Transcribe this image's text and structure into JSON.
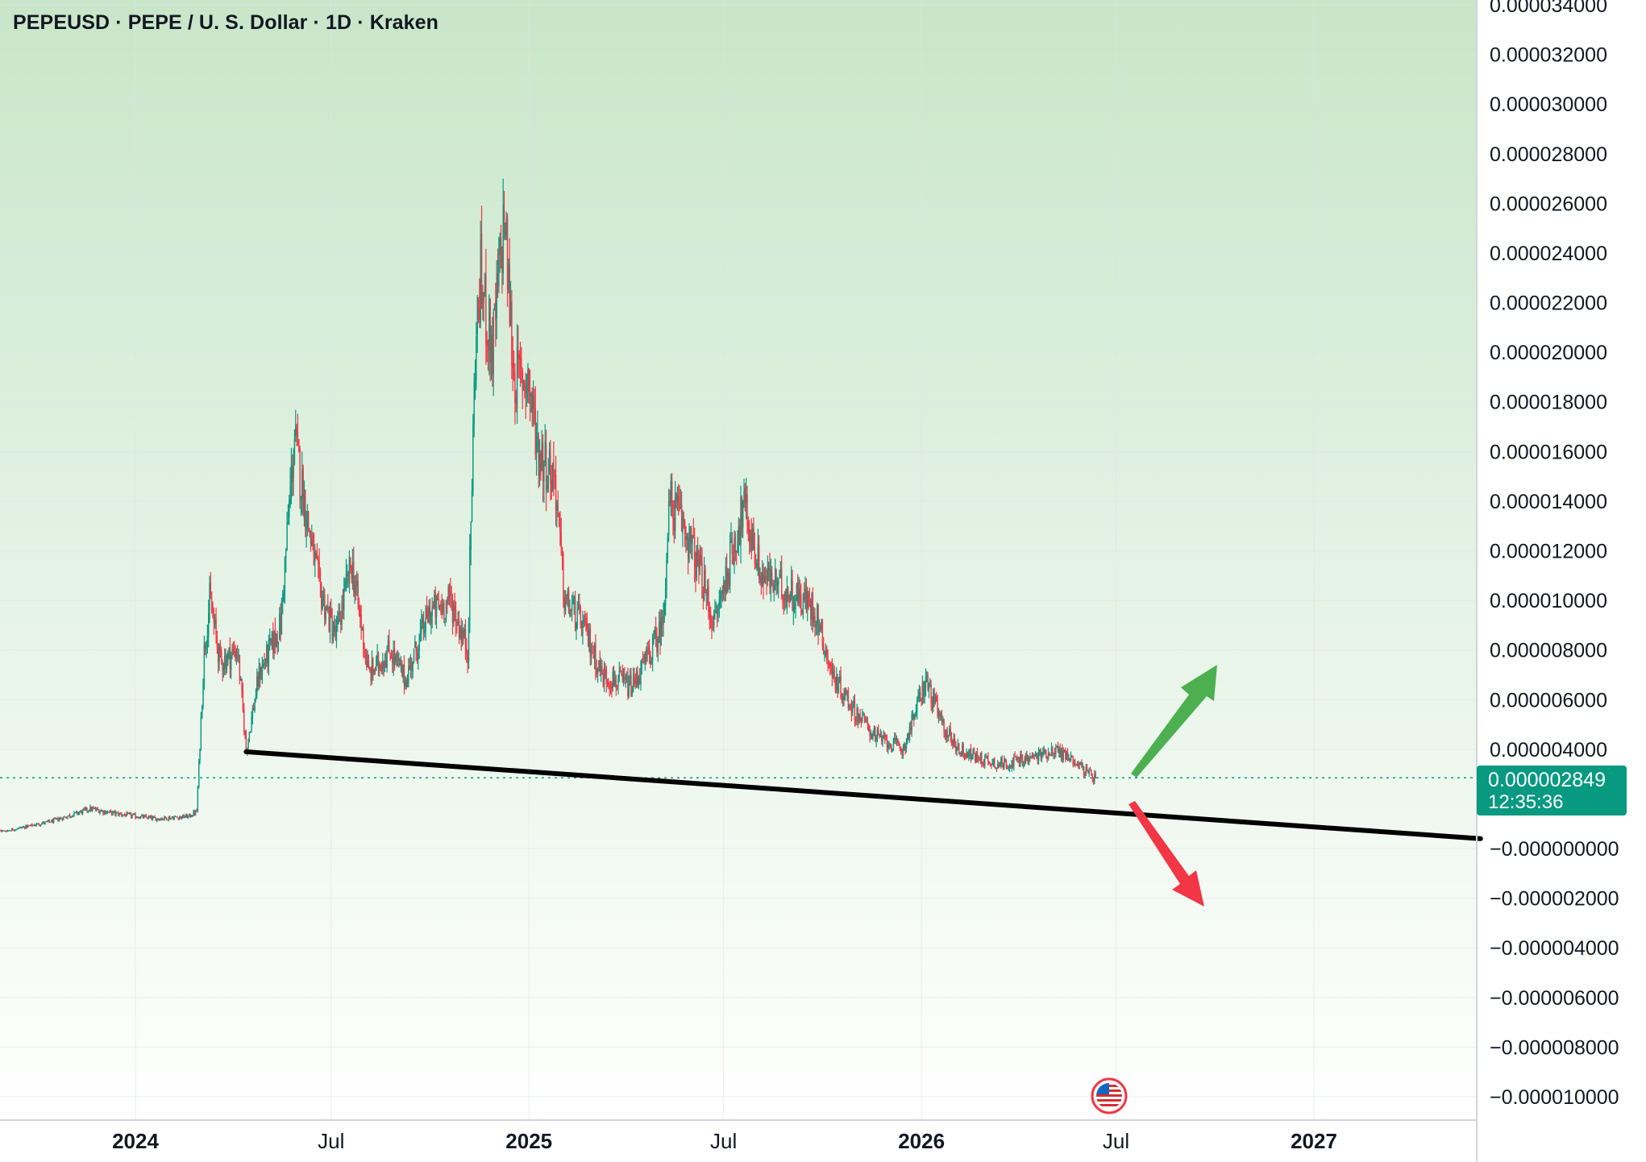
{
  "title": "PEPEUSD · PEPE / U. S. Dollar · 1D · Kraken",
  "colors": {
    "up": "#089981",
    "down": "#f23645",
    "bg_top": "#c8e6c9",
    "bg_bottom": "#ffffff",
    "trendline": "#000000",
    "arrow_up": "#4caf50",
    "arrow_down": "#f23645"
  },
  "icons": {
    "event": "us-flag-icon"
  },
  "price_tag": {
    "value": "0.000002849",
    "countdown": "12:35:36"
  },
  "chart_data": {
    "type": "candlestick",
    "title": "PEPEUSD · PEPE / U. S. Dollar · 1D · Kraken",
    "xlabel": "",
    "ylabel": "",
    "ylim": [
      -1e-05,
      3.4e-05
    ],
    "y_ticks": [
      "0.000034000",
      "0.000032000",
      "0.000030000",
      "0.000028000",
      "0.000026000",
      "0.000024000",
      "0.000022000",
      "0.000020000",
      "0.000018000",
      "0.000016000",
      "0.000014000",
      "0.000012000",
      "0.000010000",
      "0.000008000",
      "0.000006000",
      "0.000004000",
      "−0.000000000",
      "−0.000002000",
      "−0.000004000",
      "−0.000006000",
      "−0.000008000",
      "−0.000010000"
    ],
    "y_tick_values": [
      3.4e-05,
      3.2e-05,
      3e-05,
      2.8e-05,
      2.6e-05,
      2.4e-05,
      2.2e-05,
      2e-05,
      1.8e-05,
      1.6e-05,
      1.4e-05,
      1.2e-05,
      1e-05,
      8e-06,
      6e-06,
      4e-06,
      0,
      -2e-06,
      -4e-06,
      -6e-06,
      -8e-06,
      -1e-05
    ],
    "x_ticks": [
      {
        "label": "2024",
        "date": "2024-01-01",
        "bold": true
      },
      {
        "label": "Jul",
        "date": "2024-07-01",
        "bold": false
      },
      {
        "label": "2025",
        "date": "2025-01-01",
        "bold": true
      },
      {
        "label": "Jul",
        "date": "2025-07-01",
        "bold": false
      },
      {
        "label": "2026",
        "date": "2026-01-01",
        "bold": true
      },
      {
        "label": "Jul",
        "date": "2026-07-01",
        "bold": false
      },
      {
        "label": "2027",
        "date": "2027-01-01",
        "bold": true
      }
    ],
    "xlim": [
      "2023-07-29",
      "2027-06-05"
    ],
    "last_price": 2.849e-06,
    "price_path": [
      [
        "2023-07-29",
        9e-07
      ],
      [
        "2023-09-01",
        7e-07
      ],
      [
        "2023-10-15",
        1.1e-06
      ],
      [
        "2023-11-20",
        1.6e-06
      ],
      [
        "2023-12-15",
        1.4e-06
      ],
      [
        "2024-01-20",
        1.2e-06
      ],
      [
        "2024-02-20",
        1.3e-06
      ],
      [
        "2024-02-27",
        1.5e-06
      ],
      [
        "2024-03-05",
        8e-06
      ],
      [
        "2024-03-10",
        1e-05
      ],
      [
        "2024-03-20",
        7.5e-06
      ],
      [
        "2024-04-05",
        8e-06
      ],
      [
        "2024-04-13",
        4e-06
      ],
      [
        "2024-04-25",
        7e-06
      ],
      [
        "2024-05-15",
        9e-06
      ],
      [
        "2024-05-25",
        1.5e-05
      ],
      [
        "2024-05-28",
        1.65e-05
      ],
      [
        "2024-06-08",
        1.35e-05
      ],
      [
        "2024-06-20",
        1.05e-05
      ],
      [
        "2024-07-05",
        8.5e-06
      ],
      [
        "2024-07-20",
        1.15e-05
      ],
      [
        "2024-08-05",
        7e-06
      ],
      [
        "2024-08-25",
        8e-06
      ],
      [
        "2024-09-08",
        6.8e-06
      ],
      [
        "2024-09-30",
        9.5e-06
      ],
      [
        "2024-10-20",
        1e-05
      ],
      [
        "2024-11-05",
        8e-06
      ],
      [
        "2024-11-12",
        2e-05
      ],
      [
        "2024-11-17",
        2.3e-05
      ],
      [
        "2024-11-28",
        2e-05
      ],
      [
        "2024-12-09",
        2.55e-05
      ],
      [
        "2024-12-18",
        1.9e-05
      ],
      [
        "2024-12-31",
        1.9e-05
      ],
      [
        "2025-01-10",
        1.6e-05
      ],
      [
        "2025-01-25",
        1.5e-05
      ],
      [
        "2025-02-03",
        1e-05
      ],
      [
        "2025-02-20",
        9e-06
      ],
      [
        "2025-03-10",
        7e-06
      ],
      [
        "2025-04-07",
        6.5e-06
      ],
      [
        "2025-04-25",
        8e-06
      ],
      [
        "2025-05-05",
        9e-06
      ],
      [
        "2025-05-12",
        1.4e-05
      ],
      [
        "2025-05-25",
        1.3e-05
      ],
      [
        "2025-06-10",
        1.1e-05
      ],
      [
        "2025-06-22",
        9e-06
      ],
      [
        "2025-07-12",
        1.25e-05
      ],
      [
        "2025-07-20",
        1.38e-05
      ],
      [
        "2025-08-05",
        1.1e-05
      ],
      [
        "2025-08-25",
        1.05e-05
      ],
      [
        "2025-09-15",
        1e-05
      ],
      [
        "2025-09-25",
        9.5e-06
      ],
      [
        "2025-10-10",
        7e-06
      ],
      [
        "2025-11-01",
        5.5e-06
      ],
      [
        "2025-11-20",
        4.5e-06
      ],
      [
        "2025-12-15",
        4e-06
      ],
      [
        "2026-01-05",
        6.8e-06
      ],
      [
        "2026-01-20",
        5e-06
      ],
      [
        "2026-02-05",
        4e-06
      ],
      [
        "2026-02-20",
        3.7e-06
      ],
      [
        "2026-03-15",
        3.4e-06
      ],
      [
        "2026-04-10",
        3.6e-06
      ],
      [
        "2026-05-05",
        4e-06
      ],
      [
        "2026-05-25",
        3.5e-06
      ],
      [
        "2026-06-05",
        3e-06
      ],
      [
        "2026-06-12",
        2.85e-06
      ]
    ],
    "trendline": {
      "from": [
        "2024-04-13",
        3.9e-06
      ],
      "to": [
        "2027-06-05",
        4e-07
      ]
    },
    "annotations": [
      {
        "type": "arrow",
        "direction": "up",
        "color": "#4caf50"
      },
      {
        "type": "arrow",
        "direction": "down",
        "color": "#f23645"
      }
    ],
    "grid": true,
    "legend": "none"
  }
}
